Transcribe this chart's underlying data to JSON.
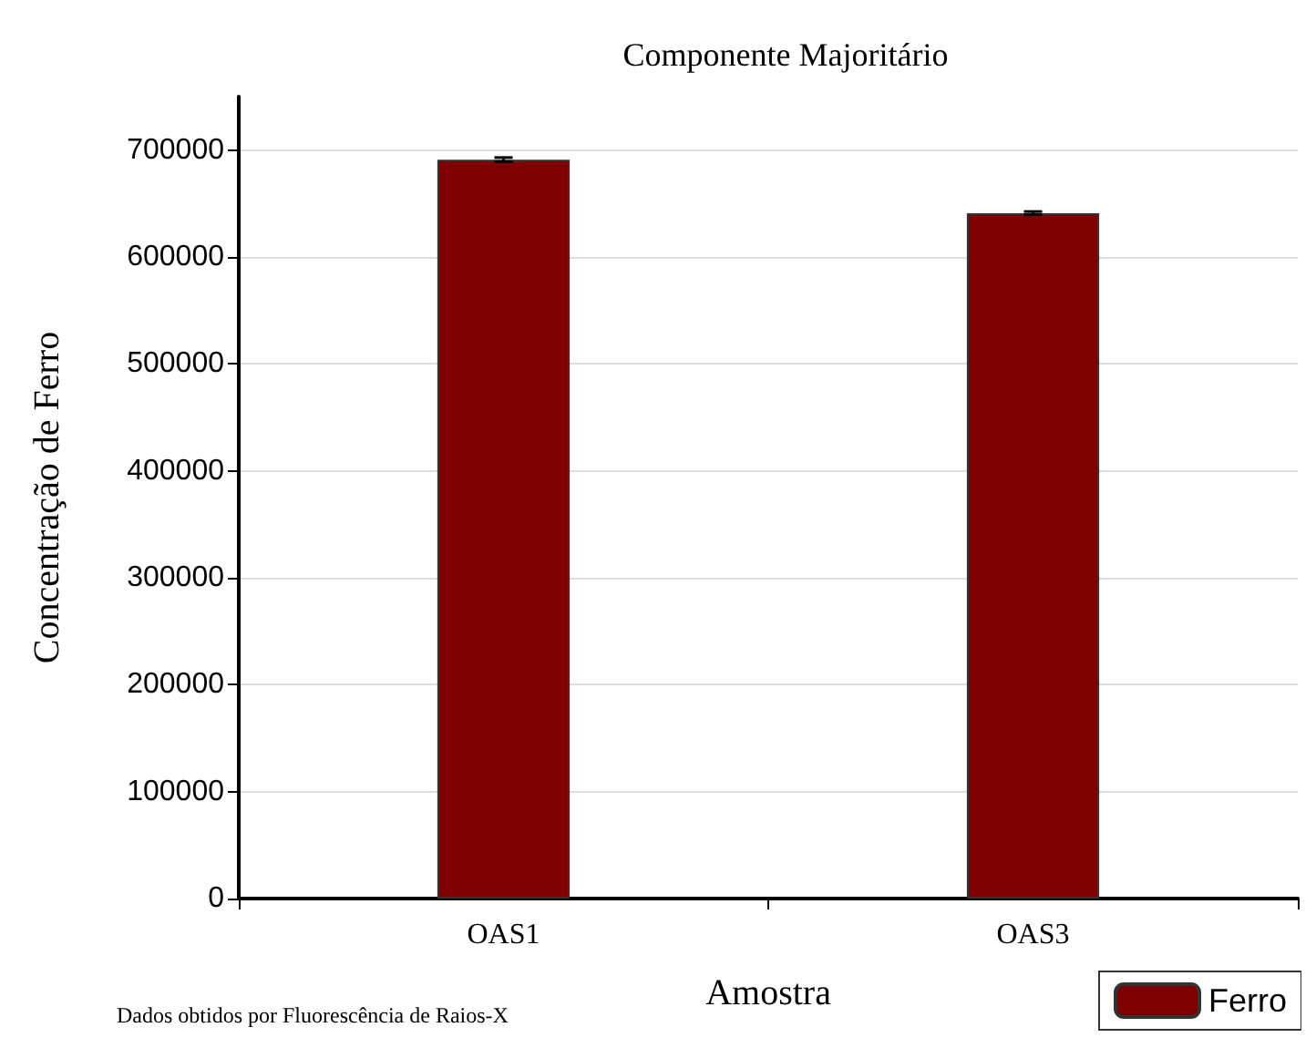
{
  "chart_data": {
    "type": "bar",
    "title": "Componente Majoritário",
    "xlabel": "Amostra",
    "ylabel": "Concentração de Ferro",
    "categories": [
      "OAS1",
      "OAS3"
    ],
    "series": [
      {
        "name": "Ferro",
        "color": "#800000",
        "values": [
          691000,
          641000
        ],
        "errors": [
          2000,
          1500
        ]
      }
    ],
    "ylim": [
      0,
      750000
    ],
    "yticks": [
      0,
      100000,
      200000,
      300000,
      400000,
      500000,
      600000,
      700000
    ],
    "grid": "y",
    "legend": "bottom right",
    "annotations": [
      "Dados obtidos por Fluorescência de Raios-X"
    ]
  }
}
